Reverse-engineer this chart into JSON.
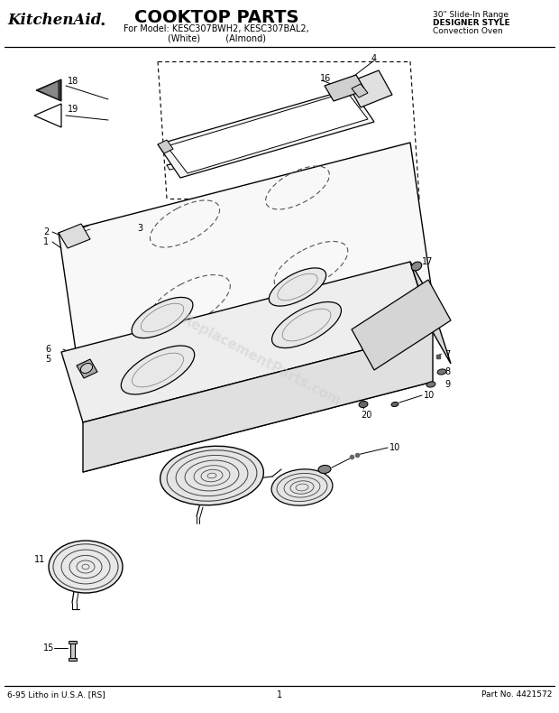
{
  "title": "COOKTOP PARTS",
  "subtitle_line1": "For Model: KESC307BWH2, KESC307BAL2,",
  "subtitle_line2": "(White)         (Almond)",
  "brand": "KitchenAid",
  "top_right_line1": "30\" Slide-In Range",
  "top_right_line2": "DESIGNER STYLE",
  "top_right_line3": "Convection Oven",
  "bottom_left": "6-95 Litho in U.S.A. [RS]",
  "bottom_center": "1",
  "bottom_right": "Part No. 4421572",
  "bg": "#ffffff",
  "lc": "#000000"
}
